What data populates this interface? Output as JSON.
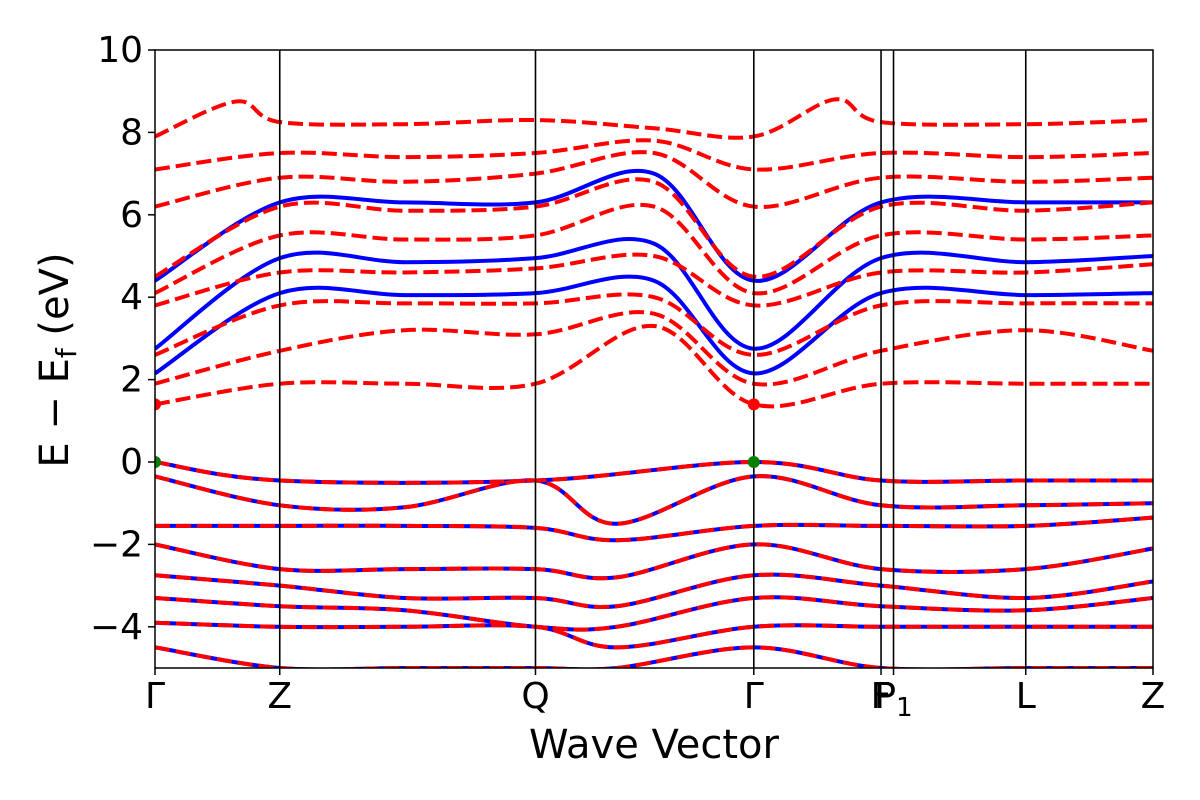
{
  "chart_data": {
    "type": "line",
    "title": "",
    "xlabel": "Wave Vector",
    "ylabel": "E − E_f (eV)",
    "ylabel_parts": [
      "E − E",
      "f",
      " (eV)"
    ],
    "ylim": [
      -5,
      10
    ],
    "yticks": [
      -4,
      -2,
      0,
      2,
      4,
      6,
      8,
      10
    ],
    "xlim": [
      0,
      8
    ],
    "kpath": [
      {
        "label": "Γ",
        "x": 0
      },
      {
        "label": "Z",
        "x": 1.0
      },
      {
        "label": "Q",
        "x": 3.05
      },
      {
        "label": "Γ",
        "x": 4.8
      },
      {
        "label": "F",
        "x": 5.82
      },
      {
        "label": "P",
        "x": 5.92,
        "sub": "1"
      },
      {
        "label": "L",
        "x": 6.98
      },
      {
        "label": "Z",
        "x": 8.0
      }
    ],
    "legend": "none",
    "grid": false,
    "colors": {
      "series_a": "#0000ff",
      "series_b": "#ff0000",
      "vbm": "#008000",
      "cbm": "#ff0000"
    },
    "series": [
      {
        "style": "solid",
        "color": "#0000ff",
        "bands": [
          {
            "x": [
              0,
              1.0,
              3.05,
              4.8,
              5.82,
              6.98,
              8.0
            ],
            "y": [
              0.0,
              -0.45,
              -0.45,
              0.0,
              -0.45,
              -0.45,
              -0.45
            ]
          },
          {
            "x": [
              0,
              1.0,
              2.0,
              3.05,
              3.7,
              4.8,
              5.82,
              6.98,
              8.0
            ],
            "y": [
              -0.35,
              -1.05,
              -1.1,
              -0.45,
              -1.5,
              -0.35,
              -1.05,
              -1.05,
              -1.0
            ]
          },
          {
            "x": [
              0,
              1.0,
              2.0,
              3.05,
              3.7,
              4.8,
              5.82,
              6.98,
              8.0
            ],
            "y": [
              -1.55,
              -1.55,
              -1.55,
              -1.6,
              -1.9,
              -1.55,
              -1.55,
              -1.55,
              -1.35
            ]
          },
          {
            "x": [
              0,
              1.0,
              2.0,
              3.05,
              3.7,
              4.8,
              5.82,
              6.98,
              8.0
            ],
            "y": [
              -2.0,
              -2.6,
              -2.6,
              -2.6,
              -2.8,
              -2.0,
              -2.6,
              -2.6,
              -2.1
            ]
          },
          {
            "x": [
              0,
              1.0,
              2.0,
              3.05,
              3.7,
              4.8,
              5.82,
              6.98,
              8.0
            ],
            "y": [
              -2.75,
              -3.0,
              -3.3,
              -3.3,
              -3.5,
              -2.75,
              -3.0,
              -3.3,
              -2.9
            ]
          },
          {
            "x": [
              0,
              1.0,
              2.0,
              3.05,
              3.7,
              4.8,
              5.82,
              6.98,
              8.0
            ],
            "y": [
              -3.3,
              -3.5,
              -3.6,
              -4.0,
              -4.0,
              -3.3,
              -3.5,
              -3.6,
              -3.3
            ]
          },
          {
            "x": [
              0,
              1.0,
              2.0,
              3.05,
              3.7,
              4.8,
              5.82,
              6.98,
              8.0
            ],
            "y": [
              -3.9,
              -4.0,
              -4.0,
              -4.0,
              -4.5,
              -4.0,
              -4.0,
              -4.0,
              -4.0
            ]
          },
          {
            "x": [
              0,
              1.0,
              2.0,
              3.05,
              3.7,
              4.8,
              5.82,
              6.98,
              8.0
            ],
            "y": [
              -4.5,
              -5.0,
              -5.0,
              -5.0,
              -5.0,
              -4.5,
              -5.0,
              -5.0,
              -5.0
            ]
          },
          {
            "x": [
              0,
              1.0,
              2.0,
              3.05,
              4.0,
              4.8,
              5.82,
              6.98,
              8.0
            ],
            "y": [
              2.15,
              4.1,
              4.05,
              4.1,
              4.4,
              2.15,
              4.1,
              4.05,
              4.1
            ]
          },
          {
            "x": [
              0,
              1.0,
              2.0,
              3.05,
              4.0,
              4.8,
              5.82,
              6.98,
              8.0
            ],
            "y": [
              2.75,
              4.95,
              4.85,
              4.95,
              5.3,
              2.75,
              4.95,
              4.85,
              5.0
            ]
          },
          {
            "x": [
              0,
              1.0,
              2.0,
              3.05,
              4.0,
              4.8,
              5.82,
              6.98,
              8.0
            ],
            "y": [
              4.4,
              6.3,
              6.3,
              6.3,
              7.0,
              4.4,
              6.3,
              6.3,
              6.3
            ]
          }
        ]
      },
      {
        "style": "dashed",
        "color": "#ff0000",
        "bands": [
          {
            "x": [
              0,
              1.0,
              3.05,
              4.8,
              5.82,
              6.98,
              8.0
            ],
            "y": [
              0.0,
              -0.45,
              -0.45,
              0.0,
              -0.45,
              -0.45,
              -0.45
            ]
          },
          {
            "x": [
              0,
              1.0,
              2.0,
              3.05,
              3.7,
              4.8,
              5.82,
              6.98,
              8.0
            ],
            "y": [
              -0.35,
              -1.05,
              -1.1,
              -0.45,
              -1.5,
              -0.35,
              -1.05,
              -1.05,
              -1.0
            ]
          },
          {
            "x": [
              0,
              1.0,
              2.0,
              3.05,
              3.7,
              4.8,
              5.82,
              6.98,
              8.0
            ],
            "y": [
              -1.55,
              -1.55,
              -1.55,
              -1.6,
              -1.9,
              -1.55,
              -1.55,
              -1.55,
              -1.35
            ]
          },
          {
            "x": [
              0,
              1.0,
              2.0,
              3.05,
              3.7,
              4.8,
              5.82,
              6.98,
              8.0
            ],
            "y": [
              -2.0,
              -2.6,
              -2.6,
              -2.6,
              -2.8,
              -2.0,
              -2.6,
              -2.6,
              -2.1
            ]
          },
          {
            "x": [
              0,
              1.0,
              2.0,
              3.05,
              3.7,
              4.8,
              5.82,
              6.98,
              8.0
            ],
            "y": [
              -2.75,
              -3.0,
              -3.3,
              -3.3,
              -3.5,
              -2.75,
              -3.0,
              -3.3,
              -2.9
            ]
          },
          {
            "x": [
              0,
              1.0,
              2.0,
              3.05,
              3.7,
              4.8,
              5.82,
              6.98,
              8.0
            ],
            "y": [
              -3.3,
              -3.5,
              -3.6,
              -4.0,
              -4.0,
              -3.3,
              -3.5,
              -3.6,
              -3.3
            ]
          },
          {
            "x": [
              0,
              1.0,
              2.0,
              3.05,
              3.7,
              4.8,
              5.82,
              6.98,
              8.0
            ],
            "y": [
              -3.9,
              -4.0,
              -4.0,
              -4.0,
              -4.5,
              -4.0,
              -4.0,
              -4.0,
              -4.0
            ]
          },
          {
            "x": [
              0,
              1.0,
              2.0,
              3.05,
              3.7,
              4.8,
              5.82,
              6.98,
              8.0
            ],
            "y": [
              -4.5,
              -5.0,
              -5.0,
              -5.0,
              -5.0,
              -4.5,
              -5.0,
              -5.0,
              -5.0
            ]
          },
          {
            "x": [
              0,
              1.0,
              2.0,
              3.05,
              4.0,
              4.8,
              5.82,
              6.98,
              8.0
            ],
            "y": [
              1.4,
              1.9,
              1.9,
              1.9,
              3.3,
              1.4,
              1.9,
              1.9,
              1.9
            ]
          },
          {
            "x": [
              0,
              1.0,
              2.0,
              3.05,
              4.0,
              4.8,
              5.82,
              6.98,
              8.0
            ],
            "y": [
              1.9,
              2.7,
              3.2,
              3.1,
              3.6,
              1.9,
              2.7,
              3.2,
              2.7
            ]
          },
          {
            "x": [
              0,
              1.0,
              2.0,
              3.05,
              4.0,
              4.8,
              5.82,
              6.98,
              8.0
            ],
            "y": [
              2.6,
              3.8,
              3.85,
              3.85,
              4.0,
              2.6,
              3.8,
              3.85,
              3.85
            ]
          },
          {
            "x": [
              0,
              1.0,
              2.0,
              3.05,
              4.0,
              4.8,
              5.82,
              6.98,
              8.0
            ],
            "y": [
              3.8,
              4.6,
              4.6,
              4.7,
              5.0,
              3.8,
              4.6,
              4.6,
              4.8
            ]
          },
          {
            "x": [
              0,
              1.0,
              2.0,
              3.05,
              4.0,
              4.8,
              5.82,
              6.98,
              8.0
            ],
            "y": [
              4.1,
              5.5,
              5.4,
              5.5,
              6.2,
              4.1,
              5.5,
              5.4,
              5.5
            ]
          },
          {
            "x": [
              0,
              1.0,
              2.0,
              3.05,
              4.0,
              4.8,
              5.82,
              6.98,
              8.0
            ],
            "y": [
              4.5,
              6.2,
              6.1,
              6.2,
              6.8,
              4.5,
              6.2,
              6.1,
              6.3
            ]
          },
          {
            "x": [
              0,
              1.0,
              2.0,
              3.05,
              4.0,
              4.8,
              5.82,
              6.98,
              8.0
            ],
            "y": [
              6.2,
              6.9,
              6.8,
              7.0,
              7.5,
              6.2,
              6.9,
              6.8,
              6.9
            ]
          },
          {
            "x": [
              0,
              1.0,
              2.0,
              3.05,
              4.0,
              4.8,
              5.82,
              6.98,
              8.0
            ],
            "y": [
              7.1,
              7.5,
              7.4,
              7.5,
              7.8,
              7.1,
              7.5,
              7.4,
              7.5
            ]
          },
          {
            "x": [
              0,
              0.65,
              1.0,
              2.0,
              3.05,
              4.0,
              4.8,
              5.45,
              5.82,
              6.98,
              8.0
            ],
            "y": [
              7.9,
              8.75,
              8.25,
              8.2,
              8.3,
              8.1,
              7.9,
              8.8,
              8.25,
              8.2,
              8.3
            ]
          }
        ]
      }
    ],
    "markers": [
      {
        "x": 0,
        "y": 0.0,
        "color": "#008000"
      },
      {
        "x": 4.8,
        "y": 0.0,
        "color": "#008000"
      },
      {
        "x": 0,
        "y": 1.4,
        "color": "#ff0000"
      },
      {
        "x": 4.8,
        "y": 1.4,
        "color": "#ff0000"
      }
    ]
  }
}
